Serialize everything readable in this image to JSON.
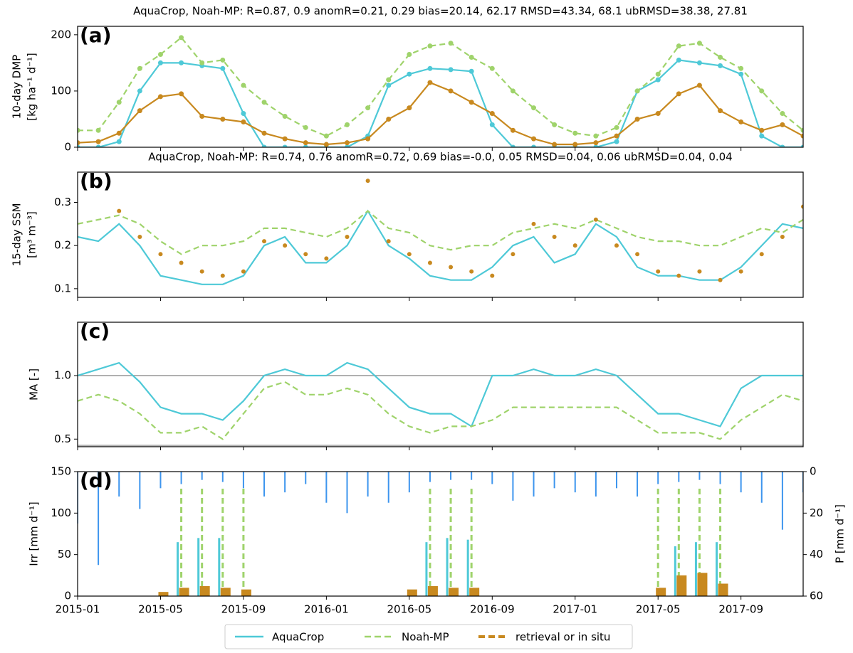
{
  "chart_data": [
    {
      "type": "line",
      "title": "AquaCrop, Noah-MP: R=0.87, 0.9    anomR=0.21, 0.29    bias=20.14, 62.17    RMSD=43.34, 68.1    ubRMSD=38.38, 27.81",
      "panel_label": "(a)",
      "ylabel": [
        "10-day DMP",
        "[kg ha⁻¹ d⁻¹]"
      ],
      "xlim": [
        "2015-01",
        "2017-12"
      ],
      "ylim": [
        0,
        215
      ],
      "yticks": [
        0,
        100,
        200
      ],
      "markers": true,
      "x": [
        "2015-01",
        "2015-02",
        "2015-03",
        "2015-04",
        "2015-05",
        "2015-06",
        "2015-07",
        "2015-08",
        "2015-09",
        "2015-10",
        "2015-11",
        "2015-12",
        "2016-01",
        "2016-02",
        "2016-03",
        "2016-04",
        "2016-05",
        "2016-06",
        "2016-07",
        "2016-08",
        "2016-09",
        "2016-10",
        "2016-11",
        "2016-12",
        "2017-01",
        "2017-02",
        "2017-03",
        "2017-04",
        "2017-05",
        "2017-06",
        "2017-07",
        "2017-08",
        "2017-09",
        "2017-10",
        "2017-11",
        "2017-12"
      ],
      "series": [
        {
          "name": "AquaCrop",
          "color": "#4ec9d7",
          "style": "solid",
          "values": [
            0,
            0,
            10,
            100,
            150,
            150,
            145,
            140,
            60,
            0,
            0,
            0,
            0,
            0,
            20,
            110,
            130,
            140,
            138,
            135,
            40,
            0,
            0,
            0,
            0,
            0,
            10,
            100,
            120,
            155,
            150,
            145,
            130,
            20,
            0,
            0
          ]
        },
        {
          "name": "Noah-MP",
          "color": "#9fd36b",
          "style": "dashed",
          "values": [
            30,
            30,
            80,
            140,
            165,
            195,
            150,
            155,
            110,
            80,
            55,
            35,
            20,
            40,
            70,
            120,
            165,
            180,
            185,
            160,
            140,
            100,
            70,
            40,
            25,
            20,
            35,
            100,
            130,
            180,
            185,
            160,
            140,
            100,
            60,
            30
          ]
        },
        {
          "name": "retrieval or in situ",
          "color": "#c8891f",
          "style": "solid",
          "values": [
            8,
            10,
            25,
            65,
            90,
            95,
            55,
            50,
            45,
            25,
            15,
            8,
            5,
            8,
            15,
            50,
            70,
            115,
            100,
            80,
            60,
            30,
            15,
            5,
            5,
            8,
            20,
            50,
            60,
            95,
            110,
            65,
            45,
            30,
            40,
            20
          ]
        }
      ]
    },
    {
      "type": "line",
      "title": "AquaCrop, Noah-MP: R=0.74, 0.76    anomR=0.72, 0.69    bias=-0.0, 0.05    RMSD=0.04, 0.06    ubRMSD=0.04, 0.04",
      "panel_label": "(b)",
      "ylabel": [
        "15-day SSM",
        "[m³ m⁻³]"
      ],
      "xlim": [
        "2015-01",
        "2017-12"
      ],
      "ylim": [
        0.08,
        0.37
      ],
      "yticks": [
        0.1,
        0.2,
        0.3
      ],
      "markers": false,
      "x": [
        "2015-01",
        "2015-02",
        "2015-03",
        "2015-04",
        "2015-05",
        "2015-06",
        "2015-07",
        "2015-08",
        "2015-09",
        "2015-10",
        "2015-11",
        "2015-12",
        "2016-01",
        "2016-02",
        "2016-03",
        "2016-04",
        "2016-05",
        "2016-06",
        "2016-07",
        "2016-08",
        "2016-09",
        "2016-10",
        "2016-11",
        "2016-12",
        "2017-01",
        "2017-02",
        "2017-03",
        "2017-04",
        "2017-05",
        "2017-06",
        "2017-07",
        "2017-08",
        "2017-09",
        "2017-10",
        "2017-11",
        "2017-12"
      ],
      "series": [
        {
          "name": "AquaCrop",
          "color": "#4ec9d7",
          "style": "solid",
          "values": [
            0.22,
            0.21,
            0.25,
            0.2,
            0.13,
            0.12,
            0.11,
            0.11,
            0.13,
            0.2,
            0.22,
            0.16,
            0.16,
            0.2,
            0.28,
            0.2,
            0.17,
            0.13,
            0.12,
            0.12,
            0.15,
            0.2,
            0.22,
            0.16,
            0.18,
            0.25,
            0.22,
            0.15,
            0.13,
            0.13,
            0.12,
            0.12,
            0.15,
            0.2,
            0.25,
            0.24
          ]
        },
        {
          "name": "Noah-MP",
          "color": "#9fd36b",
          "style": "dashed",
          "values": [
            0.25,
            0.26,
            0.27,
            0.25,
            0.21,
            0.18,
            0.2,
            0.2,
            0.21,
            0.24,
            0.24,
            0.23,
            0.22,
            0.24,
            0.28,
            0.24,
            0.23,
            0.2,
            0.19,
            0.2,
            0.2,
            0.23,
            0.24,
            0.25,
            0.24,
            0.26,
            0.24,
            0.22,
            0.21,
            0.21,
            0.2,
            0.2,
            0.22,
            0.24,
            0.23,
            0.26
          ]
        },
        {
          "name": "retrieval or in situ",
          "color": "#c8891f",
          "style": "dots",
          "values": [
            null,
            null,
            0.28,
            0.22,
            0.18,
            0.16,
            0.14,
            0.13,
            0.14,
            0.21,
            0.2,
            0.18,
            0.17,
            0.22,
            0.35,
            0.21,
            0.18,
            0.16,
            0.15,
            0.14,
            0.13,
            0.18,
            0.25,
            0.22,
            0.2,
            0.26,
            0.2,
            0.18,
            0.14,
            0.13,
            0.14,
            0.12,
            0.14,
            0.18,
            0.22,
            0.29
          ]
        }
      ]
    },
    {
      "type": "line",
      "panel_label": "(c)",
      "ylabel": [
        "MA [-]"
      ],
      "xlim": [
        "2015-01",
        "2017-12"
      ],
      "ylim": [
        0.44,
        1.42
      ],
      "yticks": [
        0.5,
        {
          "value": 1,
          "label": "1.0"
        }
      ],
      "reference_lines": [
        1,
        0.45
      ],
      "markers": false,
      "x": [
        "2015-01",
        "2015-02",
        "2015-03",
        "2015-04",
        "2015-05",
        "2015-06",
        "2015-07",
        "2015-08",
        "2015-09",
        "2015-10",
        "2015-11",
        "2015-12",
        "2016-01",
        "2016-02",
        "2016-03",
        "2016-04",
        "2016-05",
        "2016-06",
        "2016-07",
        "2016-08",
        "2016-09",
        "2016-10",
        "2016-11",
        "2016-12",
        "2017-01",
        "2017-02",
        "2017-03",
        "2017-04",
        "2017-05",
        "2017-06",
        "2017-07",
        "2017-08",
        "2017-09",
        "2017-10",
        "2017-11",
        "2017-12"
      ],
      "series": [
        {
          "name": "AquaCrop",
          "color": "#4ec9d7",
          "style": "solid",
          "values": [
            1,
            1.05,
            1.1,
            0.95,
            0.75,
            0.7,
            0.7,
            0.65,
            0.8,
            1,
            1.05,
            1,
            1,
            1.1,
            1.05,
            0.9,
            0.75,
            0.7,
            0.7,
            0.6,
            1,
            1,
            1.05,
            1,
            1,
            1.05,
            1,
            0.85,
            0.7,
            0.7,
            0.65,
            0.6,
            0.9,
            1,
            1,
            1
          ]
        },
        {
          "name": "Noah-MP",
          "color": "#9fd36b",
          "style": "dashed",
          "values": [
            0.8,
            0.85,
            0.8,
            0.7,
            0.55,
            0.55,
            0.6,
            0.5,
            0.7,
            0.9,
            0.95,
            0.85,
            0.85,
            0.9,
            0.85,
            0.7,
            0.6,
            0.55,
            0.6,
            0.6,
            0.65,
            0.75,
            0.75,
            0.75,
            0.75,
            0.75,
            0.75,
            0.65,
            0.55,
            0.55,
            0.55,
            0.5,
            0.65,
            0.75,
            0.85,
            0.8
          ]
        }
      ]
    },
    {
      "type": "bar",
      "panel_label": "(d)",
      "ylabel": [
        "Irr [mm d⁻¹]"
      ],
      "y2label": "P [mm d⁻¹]",
      "xlim": [
        "2015-01",
        "2017-12"
      ],
      "xticks": [
        "2015-01",
        "2015-05",
        "2015-09",
        "2016-01",
        "2016-05",
        "2016-09",
        "2017-01",
        "2017-05",
        "2017-09"
      ],
      "ylim": [
        0,
        150
      ],
      "yticks": [
        0,
        50,
        100,
        150
      ],
      "y2lim": [
        60,
        0
      ],
      "y2ticks": [
        0,
        20,
        40,
        60
      ],
      "x": [
        "2015-01",
        "2015-02",
        "2015-03",
        "2015-04",
        "2015-05",
        "2015-06",
        "2015-07",
        "2015-08",
        "2015-09",
        "2015-10",
        "2015-11",
        "2015-12",
        "2016-01",
        "2016-02",
        "2016-03",
        "2016-04",
        "2016-05",
        "2016-06",
        "2016-07",
        "2016-08",
        "2016-09",
        "2016-10",
        "2016-11",
        "2016-12",
        "2017-01",
        "2017-02",
        "2017-03",
        "2017-04",
        "2017-05",
        "2017-06",
        "2017-07",
        "2017-08",
        "2017-09",
        "2017-10",
        "2017-11",
        "2017-12"
      ],
      "series": [
        {
          "color": "#3d95ee",
          "style": "solid",
          "axis": "y2",
          "values": [
            25,
            45,
            12,
            18,
            8,
            6,
            4,
            5,
            8,
            12,
            10,
            6,
            15,
            20,
            12,
            15,
            10,
            5,
            4,
            4,
            6,
            14,
            12,
            8,
            10,
            12,
            8,
            12,
            6,
            5,
            4,
            6,
            10,
            15,
            28,
            10
          ]
        },
        {
          "name": "AquaCrop",
          "color": "#4ec9d7",
          "style": "solid",
          "values": [
            null,
            null,
            null,
            null,
            null,
            65,
            70,
            70,
            null,
            null,
            null,
            null,
            null,
            null,
            null,
            null,
            null,
            65,
            70,
            68,
            null,
            null,
            null,
            null,
            null,
            null,
            null,
            null,
            null,
            60,
            65,
            65,
            null,
            null,
            null,
            null
          ]
        },
        {
          "name": "Noah-MP",
          "color": "#9fd36b",
          "style": "dashed",
          "values": [
            null,
            null,
            null,
            null,
            null,
            130,
            130,
            130,
            130,
            null,
            null,
            null,
            null,
            null,
            null,
            null,
            null,
            130,
            130,
            130,
            null,
            null,
            null,
            null,
            null,
            null,
            null,
            null,
            130,
            130,
            130,
            130,
            null,
            null,
            null,
            null
          ]
        },
        {
          "name": "retrieval or in situ",
          "color": "#c8891f",
          "style": "solid",
          "values": [
            null,
            null,
            null,
            null,
            5,
            10,
            12,
            10,
            8,
            null,
            null,
            null,
            null,
            null,
            null,
            null,
            8,
            12,
            10,
            10,
            null,
            null,
            null,
            null,
            null,
            null,
            null,
            null,
            10,
            25,
            28,
            15,
            null,
            null,
            null,
            null
          ]
        }
      ]
    }
  ]
}
